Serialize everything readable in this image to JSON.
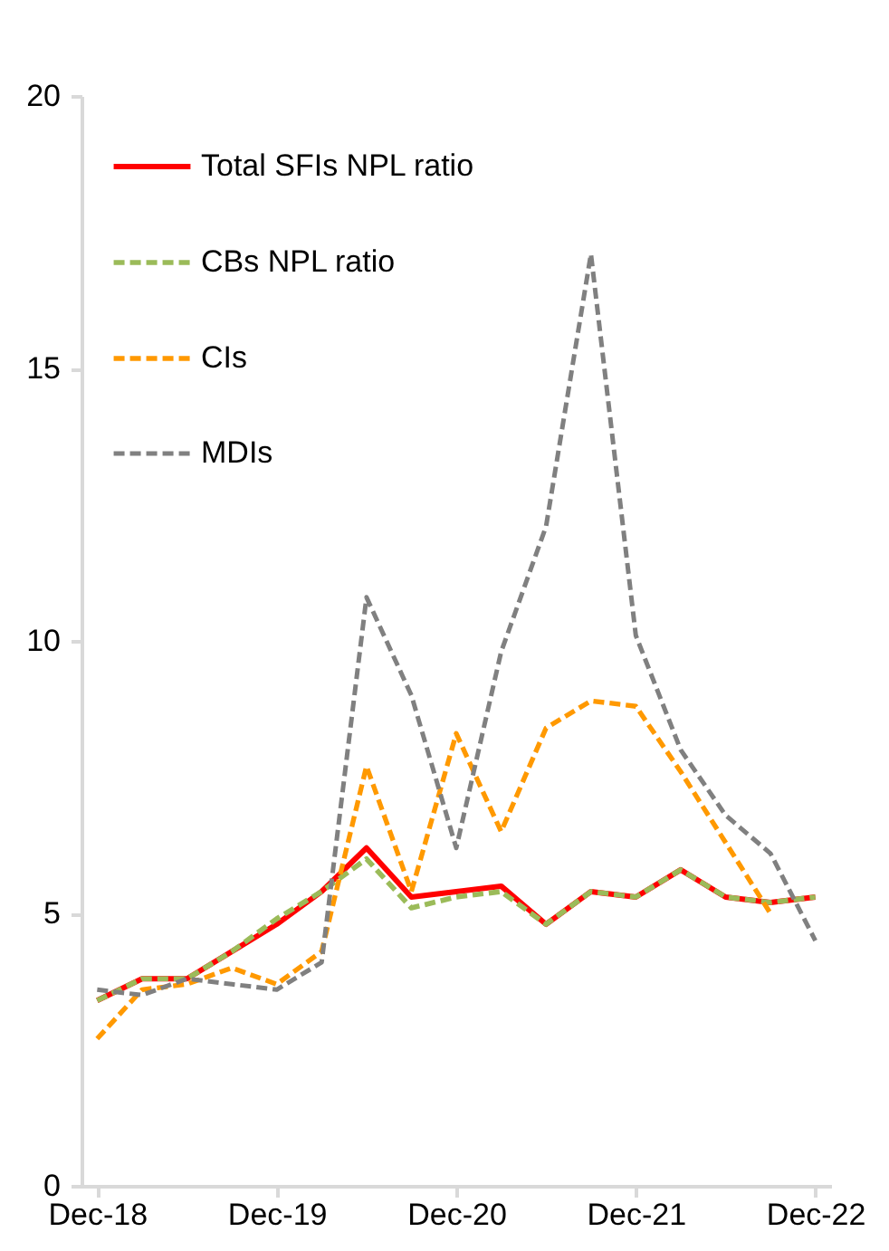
{
  "chart_data": {
    "type": "line",
    "categories": [
      "Dec-18",
      null,
      null,
      null,
      "Dec-19",
      null,
      null,
      null,
      "Dec-20",
      null,
      null,
      null,
      "Dec-21",
      null,
      null,
      null,
      "Dec-22"
    ],
    "series": [
      {
        "name": "Total SFIs NPL ratio",
        "color": "#ff0000",
        "line_style": "solid",
        "values": [
          3.4,
          3.8,
          3.8,
          4.3,
          4.8,
          5.4,
          6.2,
          5.3,
          5.4,
          5.5,
          4.8,
          5.4,
          5.3,
          5.8,
          5.3,
          5.2,
          5.3
        ]
      },
      {
        "name": "CBs NPL ratio",
        "color": "#9bbb59",
        "line_style": "dashed",
        "values": [
          3.4,
          3.8,
          3.8,
          4.3,
          4.9,
          5.4,
          6.0,
          5.1,
          5.3,
          5.4,
          4.8,
          5.4,
          5.3,
          5.8,
          5.3,
          5.2,
          5.3
        ]
      },
      {
        "name": "CIs",
        "color": "#ff9900",
        "line_style": "dashed",
        "values": [
          2.7,
          3.6,
          3.7,
          4.0,
          3.7,
          4.3,
          7.7,
          5.4,
          8.3,
          6.5,
          8.4,
          8.9,
          8.8,
          7.6,
          6.3,
          5.0,
          null
        ]
      },
      {
        "name": "MDIs",
        "color": "#808080",
        "line_style": "dashed",
        "values": [
          3.6,
          3.5,
          3.8,
          3.7,
          3.6,
          4.1,
          10.8,
          9.0,
          6.2,
          9.8,
          12.1,
          17.1,
          10.1,
          8.0,
          6.8,
          6.1,
          4.5
        ]
      }
    ],
    "ylim": [
      0,
      20
    ],
    "yticks": [
      0,
      5,
      10,
      15,
      20
    ],
    "grid": false,
    "legend": "top left",
    "marker": "none"
  }
}
